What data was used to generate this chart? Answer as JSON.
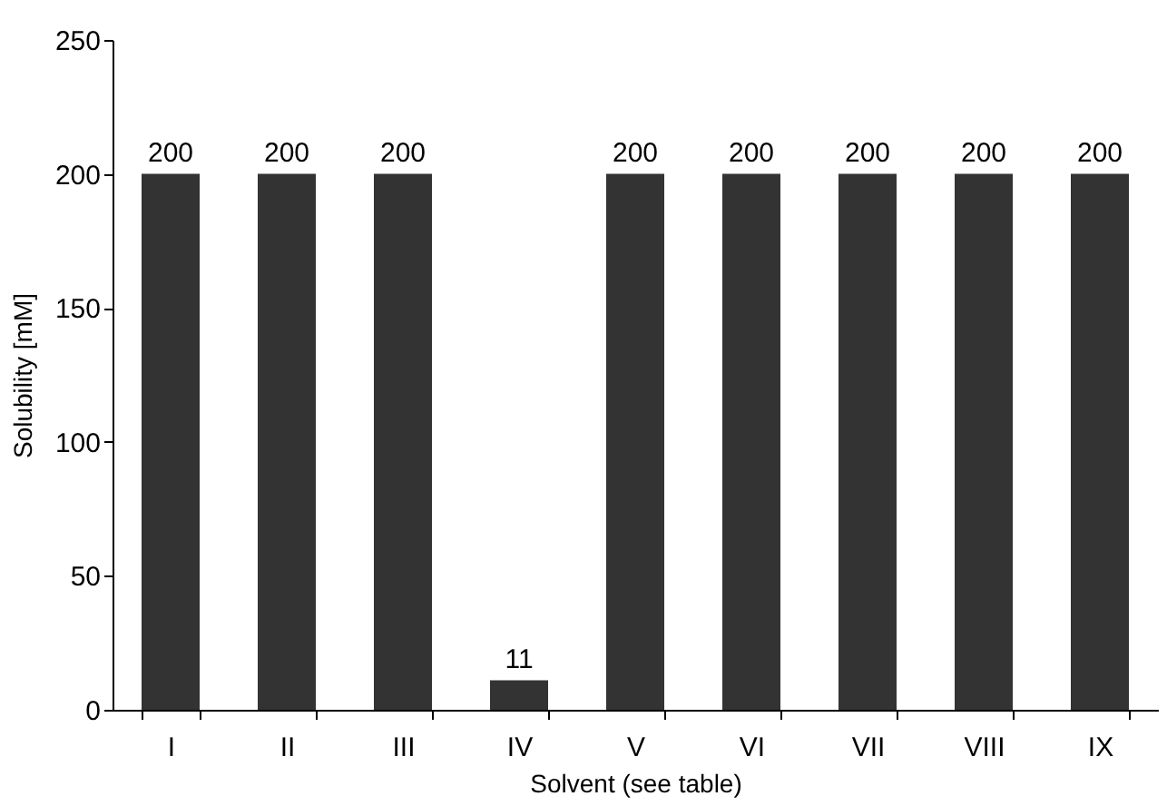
{
  "chart_data": {
    "type": "bar",
    "xlabel": "Solvent (see table)",
    "ylabel": "Solubility [mM]",
    "categories": [
      "I",
      "II",
      "III",
      "IV",
      "V",
      "VI",
      "VII",
      "VIII",
      "IX"
    ],
    "values": [
      200,
      200,
      200,
      11,
      200,
      200,
      200,
      200,
      200
    ],
    "color": "#333333",
    "ylim": [
      0,
      250
    ],
    "yticks": [
      0,
      50,
      100,
      150,
      200,
      250
    ],
    "grid": false,
    "data_labels": true
  }
}
